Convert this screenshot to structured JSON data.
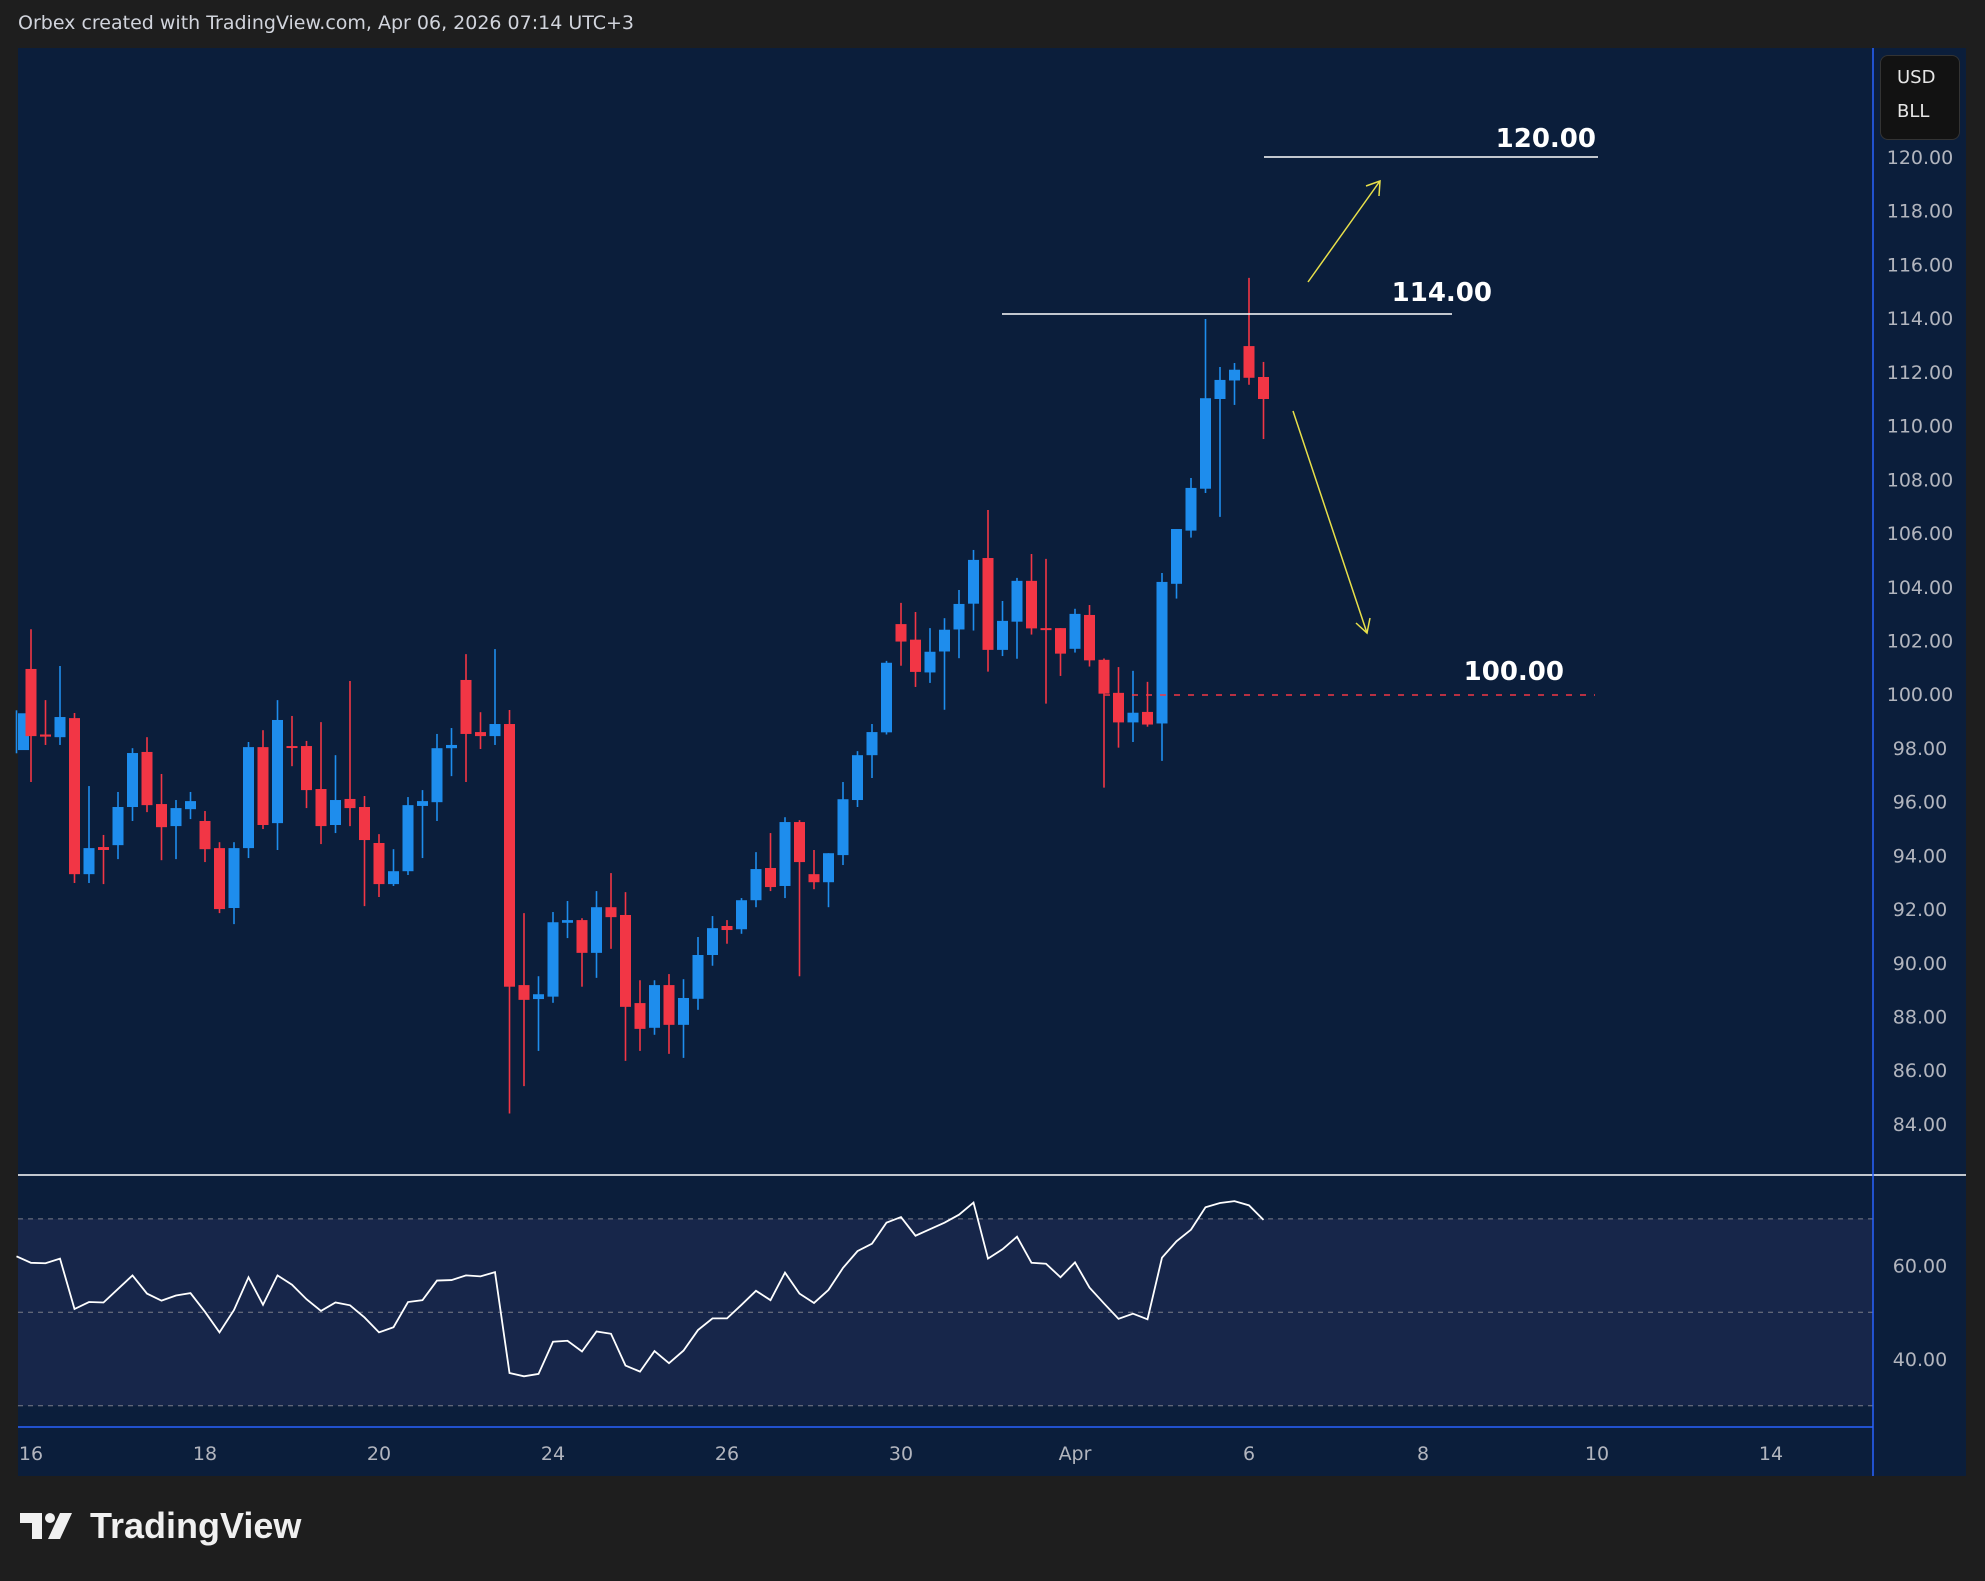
{
  "header": {
    "text": "Orbex created with TradingView.com, Apr 06, 2026 07:14 UTC+3"
  },
  "currency_box": {
    "currency": "USD",
    "unit": "BLL"
  },
  "logo": {
    "text": "TradingView"
  },
  "colors": {
    "up": "#1e8ded",
    "down": "#f23645",
    "background": "#0b1e3b",
    "rsi_band": "#17264a",
    "arrow": "#e8e04a",
    "level_line": "#ffffff",
    "dashed_level": "#f23645"
  },
  "annotations": {
    "level_120": "120.00",
    "level_114": "114.00",
    "level_100": "100.00"
  },
  "chart_data": [
    {
      "type": "candlestick",
      "ylim": [
        83,
        122
      ],
      "y_tick_labels": [
        "120.00",
        "118.00",
        "116.00",
        "114.00",
        "112.00",
        "110.00",
        "108.00",
        "106.00",
        "104.00",
        "102.00",
        "100.00",
        "98.00",
        "96.00",
        "94.00",
        "92.00",
        "90.00",
        "88.00",
        "86.00",
        "84.00"
      ],
      "x_tick_labels": [
        "16",
        "18",
        "20",
        "24",
        "26",
        "30",
        "Apr",
        "6",
        "8",
        "10",
        "14"
      ],
      "ohlc": [
        [
          97.92,
          99.4,
          97.8,
          99.29
        ],
        [
          100.94,
          102.42,
          96.73,
          98.44
        ],
        [
          98.5,
          99.78,
          98.11,
          98.42
        ],
        [
          98.4,
          101.05,
          98.11,
          99.15
        ],
        [
          99.11,
          99.3,
          92.97,
          93.3
        ],
        [
          93.3,
          96.58,
          92.97,
          94.27
        ],
        [
          94.31,
          94.76,
          92.93,
          94.2
        ],
        [
          94.38,
          96.36,
          93.86,
          95.8
        ],
        [
          95.8,
          97.99,
          95.28,
          97.81
        ],
        [
          97.85,
          98.4,
          95.61,
          95.87
        ],
        [
          95.91,
          97.03,
          93.82,
          95.05
        ],
        [
          95.09,
          96.06,
          93.86,
          95.76
        ],
        [
          95.72,
          96.36,
          95.35,
          96.02
        ],
        [
          95.28,
          95.65,
          93.75,
          94.23
        ],
        [
          94.27,
          94.49,
          91.85,
          92.0
        ],
        [
          92.04,
          94.49,
          91.44,
          94.27
        ],
        [
          94.27,
          98.22,
          93.9,
          98.03
        ],
        [
          98.03,
          98.66,
          94.98,
          95.13
        ],
        [
          95.2,
          99.78,
          94.2,
          99.04
        ],
        [
          98.07,
          99.19,
          97.32,
          98.03
        ],
        [
          98.07,
          98.26,
          95.76,
          96.43
        ],
        [
          96.47,
          98.96,
          94.42,
          95.09
        ],
        [
          95.13,
          97.73,
          94.83,
          96.06
        ],
        [
          96.1,
          100.49,
          95.09,
          95.76
        ],
        [
          95.8,
          96.21,
          92.11,
          94.57
        ],
        [
          94.46,
          94.79,
          92.45,
          92.93
        ],
        [
          92.93,
          94.23,
          92.86,
          93.41
        ],
        [
          93.41,
          96.17,
          93.27,
          95.87
        ],
        [
          95.84,
          96.43,
          93.9,
          96.02
        ],
        [
          95.98,
          98.52,
          95.28,
          97.99
        ],
        [
          97.99,
          98.74,
          96.95,
          98.11
        ],
        [
          100.53,
          101.49,
          96.73,
          98.52
        ],
        [
          98.59,
          99.33,
          97.96,
          98.44
        ],
        [
          98.44,
          101.68,
          98.11,
          98.89
        ],
        [
          98.89,
          99.41,
          84.39,
          89.11
        ],
        [
          89.17,
          91.85,
          85.41,
          88.62
        ],
        [
          88.65,
          89.5,
          86.72,
          88.83
        ],
        [
          88.74,
          91.89,
          88.51,
          91.51
        ],
        [
          91.49,
          92.3,
          90.92,
          91.59
        ],
        [
          91.59,
          91.66,
          89.11,
          90.37
        ],
        [
          90.37,
          92.67,
          89.44,
          92.07
        ],
        [
          92.07,
          93.34,
          90.52,
          91.7
        ],
        [
          91.78,
          92.63,
          86.35,
          88.36
        ],
        [
          88.5,
          89.35,
          86.72,
          87.54
        ],
        [
          87.58,
          89.35,
          87.32,
          89.17
        ],
        [
          89.17,
          89.58,
          86.61,
          87.69
        ],
        [
          87.69,
          89.39,
          86.46,
          88.69
        ],
        [
          88.66,
          90.96,
          88.25,
          90.29
        ],
        [
          90.29,
          91.74,
          89.89,
          91.29
        ],
        [
          91.37,
          91.59,
          90.71,
          91.22
        ],
        [
          91.25,
          92.41,
          91.08,
          92.33
        ],
        [
          92.33,
          94.12,
          92.07,
          93.49
        ],
        [
          93.53,
          94.83,
          92.67,
          92.82
        ],
        [
          92.86,
          95.42,
          92.41,
          95.24
        ],
        [
          95.24,
          95.31,
          89.5,
          93.75
        ],
        [
          93.3,
          94.2,
          92.74,
          93.0
        ],
        [
          93.0,
          94.08,
          92.07,
          94.08
        ],
        [
          94.01,
          96.73,
          93.64,
          96.09
        ],
        [
          96.06,
          97.88,
          95.8,
          97.73
        ],
        [
          97.73,
          98.89,
          96.88,
          98.59
        ],
        [
          98.58,
          101.24,
          98.5,
          101.17
        ],
        [
          102.61,
          103.4,
          101.06,
          101.96
        ],
        [
          102.03,
          103.06,
          100.27,
          100.83
        ],
        [
          100.81,
          102.46,
          100.42,
          101.58
        ],
        [
          101.59,
          102.83,
          99.42,
          102.4
        ],
        [
          102.41,
          103.88,
          101.34,
          103.36
        ],
        [
          103.37,
          105.37,
          102.37,
          105.0
        ],
        [
          105.07,
          106.86,
          100.84,
          101.65
        ],
        [
          101.65,
          103.47,
          101.42,
          102.73
        ],
        [
          102.7,
          104.33,
          101.32,
          104.22
        ],
        [
          104.22,
          105.22,
          102.22,
          102.45
        ],
        [
          102.46,
          105.04,
          99.65,
          102.41
        ],
        [
          102.46,
          102.46,
          100.68,
          101.51
        ],
        [
          101.69,
          103.18,
          101.55,
          102.99
        ],
        [
          102.95,
          103.32,
          101.03,
          101.26
        ],
        [
          101.28,
          101.33,
          96.52,
          100.02
        ],
        [
          100.05,
          101.01,
          98.01,
          98.95
        ],
        [
          98.95,
          100.87,
          98.22,
          99.31
        ],
        [
          99.34,
          100.46,
          98.79,
          98.87
        ],
        [
          98.91,
          104.51,
          97.52,
          104.18
        ],
        [
          104.11,
          106.15,
          103.56,
          106.15
        ],
        [
          106.09,
          108.05,
          105.83,
          107.68
        ],
        [
          107.65,
          113.97,
          107.49,
          111.02
        ],
        [
          110.99,
          112.18,
          106.6,
          111.7
        ],
        [
          111.68,
          112.33,
          110.77,
          112.08
        ],
        [
          112.96,
          115.5,
          111.52,
          111.78
        ],
        [
          111.81,
          112.37,
          109.5,
          110.99
        ]
      ]
    },
    {
      "type": "line",
      "ylim": [
        25,
        80
      ],
      "y_tick_labels": [
        "60.00",
        "40.00"
      ],
      "band": [
        30,
        70
      ],
      "midline": 50,
      "values": [
        62.0,
        60.6,
        60.5,
        61.5,
        50.7,
        52.2,
        52.1,
        55.0,
        57.9,
        54.0,
        52.5,
        53.6,
        54.1,
        50.1,
        45.7,
        50.5,
        57.5,
        51.6,
        57.9,
        55.9,
        52.8,
        50.3,
        52.1,
        51.5,
        48.9,
        45.7,
        46.8,
        52.2,
        52.6,
        56.8,
        56.9,
        57.9,
        57.7,
        58.6,
        37.0,
        36.3,
        36.8,
        43.7,
        43.9,
        41.6,
        45.9,
        45.4,
        38.6,
        37.3,
        41.7,
        39.1,
        41.8,
        46.2,
        48.7,
        48.7,
        51.6,
        54.6,
        52.6,
        58.5,
        54.0,
        52.0,
        54.8,
        59.5,
        63.1,
        64.7,
        69.2,
        70.4,
        66.4,
        67.8,
        69.2,
        70.9,
        73.5,
        61.5,
        63.5,
        66.2,
        60.6,
        60.4,
        57.5,
        60.7,
        55.3,
        51.9,
        48.6,
        49.7,
        48.5,
        61.7,
        65.2,
        67.7,
        72.5,
        73.4,
        73.8,
        72.9,
        69.8
      ]
    }
  ]
}
